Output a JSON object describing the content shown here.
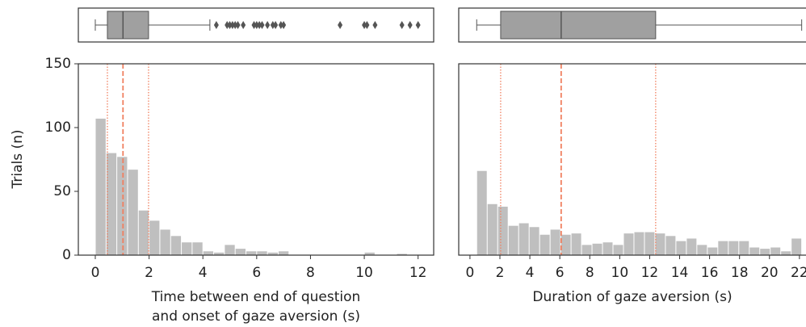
{
  "chart_data": [
    {
      "type": "histogram",
      "xlabel": [
        "Time between end of question",
        "and onset of gaze aversion (s)"
      ],
      "ylabel": "Trials (n)",
      "bins": [
        0,
        0.4,
        0.8,
        1.2,
        1.6,
        2.0,
        2.4,
        2.8,
        3.2,
        3.6,
        4.0,
        4.4,
        4.8,
        5.2,
        5.6,
        6.0,
        6.4,
        6.8,
        7.2,
        7.6,
        8.0,
        8.4,
        8.8,
        9.2,
        9.6,
        10.0,
        10.4,
        10.8,
        11.2,
        11.6,
        12.0
      ],
      "values": [
        107,
        80,
        77,
        67,
        35,
        27,
        20,
        15,
        10,
        10,
        3,
        2,
        8,
        5,
        3,
        3,
        2,
        3,
        0,
        0,
        0,
        0,
        0,
        0,
        0,
        2,
        0,
        0,
        1,
        0
      ],
      "color": "#bfbfbf",
      "xlim": [
        -0.63,
        12.58
      ],
      "xticks": [
        0,
        2,
        4,
        6,
        8,
        10,
        12
      ],
      "ylim": [
        0,
        150
      ],
      "yticks": [
        0,
        50,
        100,
        150
      ],
      "vlines": [
        {
          "value": 0.45,
          "style": "dotted"
        },
        {
          "value": 1.03,
          "style": "dashed"
        },
        {
          "value": 1.98,
          "style": "dotted"
        }
      ],
      "line_color": "#f08060",
      "box": {
        "whislo": 0.0,
        "q1": 0.45,
        "med": 1.03,
        "q3": 1.98,
        "whishi": 4.26,
        "fliers": [
          4.5,
          4.9,
          5.0,
          5.1,
          5.2,
          5.3,
          5.5,
          5.9,
          6.0,
          6.1,
          6.2,
          6.4,
          6.6,
          6.7,
          6.9,
          7.0,
          9.1,
          10.0,
          10.1,
          10.4,
          11.4,
          11.7,
          12.0
        ],
        "color": "#a0a0a0"
      }
    },
    {
      "type": "histogram",
      "xlabel": [
        "Duration of gaze aversion (s)"
      ],
      "bins": [
        0.45,
        1.15,
        1.85,
        2.55,
        3.25,
        3.95,
        4.65,
        5.35,
        6.05,
        6.75,
        7.45,
        8.15,
        8.85,
        9.55,
        10.25,
        10.95,
        11.65,
        12.35,
        13.05,
        13.75,
        14.45,
        15.15,
        15.85,
        16.55,
        17.25,
        17.95,
        18.65,
        19.35,
        20.05,
        20.75,
        21.45,
        22.15
      ],
      "values": [
        66,
        40,
        38,
        23,
        25,
        22,
        16,
        20,
        16,
        17,
        8,
        9,
        10,
        8,
        17,
        18,
        18,
        17,
        15,
        11,
        13,
        8,
        6,
        11,
        11,
        11,
        6,
        5,
        6,
        3,
        13
      ],
      "color": "#bfbfbf",
      "xlim": [
        -0.75,
        22.6
      ],
      "xticks": [
        0,
        2,
        4,
        6,
        8,
        10,
        12,
        14,
        16,
        18,
        20,
        22
      ],
      "ylim": [
        0,
        150
      ],
      "vlines": [
        {
          "value": 2.05,
          "style": "dotted"
        },
        {
          "value": 6.09,
          "style": "dashed"
        },
        {
          "value": 12.4,
          "style": "dotted"
        }
      ],
      "line_color": "#f08060",
      "box": {
        "whislo": 0.45,
        "q1": 2.05,
        "med": 6.09,
        "q3": 12.4,
        "whishi": 22.15,
        "fliers": [],
        "color": "#a0a0a0"
      }
    }
  ]
}
